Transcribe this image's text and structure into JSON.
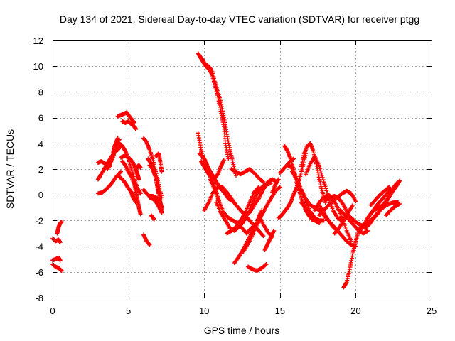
{
  "chart_data": {
    "type": "scatter",
    "title": "Day 134 of 2021, Sidereal Day-to-day VTEC variation (SDTVAR) for receiver ptgg",
    "xlabel": "GPS time / hours",
    "ylabel": "SDTVAR / TECUs",
    "xlim": [
      0,
      25
    ],
    "ylim": [
      -8,
      12
    ],
    "xticks": [
      0,
      5,
      10,
      15,
      20,
      25
    ],
    "yticks": [
      -8,
      -6,
      -4,
      -2,
      0,
      2,
      4,
      6,
      8,
      10,
      12
    ],
    "grid": true,
    "marker": "+",
    "color": "#ff0000",
    "tracks": [
      {
        "x": [
          0.0,
          0.2,
          0.4,
          0.5
        ],
        "y": [
          -3.4,
          -3.6,
          -3.5,
          -3.7
        ]
      },
      {
        "x": [
          0.0,
          0.2,
          0.4,
          0.5
        ],
        "y": [
          -5.1,
          -5.0,
          -4.9,
          -5.1
        ]
      },
      {
        "x": [
          0.0,
          0.2,
          0.4,
          0.6
        ],
        "y": [
          -5.4,
          -5.6,
          -5.7,
          -5.9
        ]
      },
      {
        "x": [
          0.3,
          0.4,
          0.5,
          0.6
        ],
        "y": [
          -3.0,
          -2.5,
          -2.2,
          -2.1
        ]
      },
      {
        "x": [
          3.0,
          3.2,
          3.5,
          3.8
        ],
        "y": [
          2.5,
          2.6,
          2.4,
          2.2
        ]
      },
      {
        "x": [
          3.0,
          3.2,
          3.5,
          3.7,
          3.9,
          4.1,
          4.3,
          4.5
        ],
        "y": [
          1.2,
          1.6,
          2.2,
          2.6,
          3.0,
          3.3,
          3.5,
          3.8
        ]
      },
      {
        "x": [
          3.0,
          3.3,
          3.6,
          3.9,
          4.2,
          4.5
        ],
        "y": [
          0.1,
          0.2,
          0.5,
          0.9,
          1.4,
          1.8
        ]
      },
      {
        "x": [
          3.6,
          3.8,
          4.0,
          4.1,
          4.2,
          4.3,
          4.4
        ],
        "y": [
          2.0,
          2.4,
          3.0,
          3.4,
          3.7,
          4.2,
          4.3
        ]
      },
      {
        "x": [
          4.0,
          4.1,
          4.2,
          4.3
        ],
        "y": [
          3.3,
          3.8,
          4.1,
          4.4
        ]
      },
      {
        "x": [
          4.3,
          4.5,
          4.7,
          4.9,
          5.0,
          5.2,
          5.4
        ],
        "y": [
          6.1,
          6.2,
          6.3,
          6.4,
          6.2,
          5.9,
          5.6
        ]
      },
      {
        "x": [
          4.6,
          4.8,
          5.0,
          5.2,
          5.4,
          5.5
        ],
        "y": [
          5.7,
          5.6,
          5.7,
          5.5,
          5.3,
          5.1
        ]
      },
      {
        "x": [
          4.4,
          4.6,
          4.8,
          5.0,
          5.2,
          5.4,
          5.6,
          5.8
        ],
        "y": [
          4.0,
          3.8,
          3.4,
          2.8,
          2.0,
          1.2,
          0.5,
          0.1
        ]
      },
      {
        "x": [
          4.5,
          4.7,
          4.9,
          5.1,
          5.3,
          5.5,
          5.6,
          5.7
        ],
        "y": [
          2.9,
          3.0,
          3.0,
          2.8,
          2.5,
          2.0,
          1.6,
          1.2
        ]
      },
      {
        "x": [
          4.6,
          4.8,
          5.0,
          5.2,
          5.4,
          5.5,
          5.6,
          5.7,
          5.8
        ],
        "y": [
          2.6,
          2.3,
          1.8,
          1.4,
          0.8,
          0.2,
          -0.4,
          -1.0,
          -1.5
        ]
      },
      {
        "x": [
          4.4,
          4.6,
          4.8,
          5.0,
          5.2,
          5.3,
          5.5
        ],
        "y": [
          1.4,
          1.2,
          0.9,
          0.5,
          0.2,
          -0.2,
          -0.6
        ]
      },
      {
        "x": [
          5.5,
          5.6,
          5.7,
          5.8
        ],
        "y": [
          2.0,
          2.2,
          2.3,
          2.1
        ]
      },
      {
        "x": [
          6.0,
          6.2,
          6.4,
          6.6,
          6.8,
          7.0,
          7.2
        ],
        "y": [
          4.4,
          4.1,
          3.5,
          2.8,
          1.8,
          0.8,
          -0.2
        ]
      },
      {
        "x": [
          6.3,
          6.5,
          6.7,
          6.9,
          7.0,
          7.1,
          7.2
        ],
        "y": [
          2.8,
          2.4,
          1.7,
          1.0,
          0.2,
          -0.5,
          -1.2
        ]
      },
      {
        "x": [
          6.4,
          6.6,
          6.8,
          6.9,
          7.0,
          7.1,
          7.2
        ],
        "y": [
          2.3,
          2.0,
          1.4,
          0.7,
          0.1,
          -0.6,
          -1.4
        ]
      },
      {
        "x": [
          6.0,
          6.2,
          6.4,
          6.6,
          6.8,
          7.0,
          7.2
        ],
        "y": [
          0.4,
          0.1,
          -0.1,
          -0.1,
          -0.2,
          -0.4,
          -0.9
        ]
      },
      {
        "x": [
          6.4,
          6.6,
          6.8,
          7.0,
          7.2
        ],
        "y": [
          -0.2,
          -0.3,
          -0.5,
          -0.9,
          -1.4
        ]
      },
      {
        "x": [
          6.8,
          7.0,
          7.1,
          7.2
        ],
        "y": [
          3.0,
          3.2,
          2.6,
          1.8
        ]
      },
      {
        "x": [
          6.0,
          6.2,
          6.4
        ],
        "y": [
          -3.1,
          -3.6,
          -3.9
        ]
      },
      {
        "x": [
          6.5,
          6.7
        ],
        "y": [
          -1.6,
          -1.9
        ]
      },
      {
        "x": [
          9.6,
          9.8,
          10.0,
          10.2,
          10.5,
          10.7,
          10.9,
          11.1,
          11.3,
          11.5,
          11.7,
          11.9,
          12.1
        ],
        "y": [
          11.0,
          10.6,
          10.2,
          10.1,
          9.7,
          8.8,
          8.0,
          7.2,
          6.0,
          4.7,
          3.5,
          2.5,
          1.5
        ]
      },
      {
        "x": [
          9.7,
          9.9,
          10.1,
          10.3,
          10.5,
          10.7,
          10.9,
          11.1,
          11.3,
          11.4,
          11.6
        ],
        "y": [
          10.8,
          10.5,
          10.0,
          9.8,
          9.4,
          8.6,
          7.6,
          6.5,
          5.3,
          4.0,
          2.8
        ]
      },
      {
        "x": [
          9.6,
          9.8,
          10.0,
          10.2,
          10.4,
          10.6,
          10.8,
          11.0,
          11.3,
          11.6,
          11.9
        ],
        "y": [
          4.8,
          3.5,
          2.5,
          2.2,
          1.8,
          1.4,
          1.0,
          0.6,
          0.2,
          -0.3,
          -0.5
        ]
      },
      {
        "x": [
          9.7,
          9.9,
          10.1,
          10.3,
          10.5,
          10.7,
          10.9,
          11.1,
          11.3
        ],
        "y": [
          3.2,
          3.0,
          2.6,
          2.0,
          1.6,
          1.3,
          1.6,
          2.2,
          2.7
        ]
      },
      {
        "x": [
          9.8,
          10.0,
          10.2,
          10.4,
          10.6,
          10.8,
          11.0
        ],
        "y": [
          2.6,
          2.2,
          1.8,
          1.4,
          0.8,
          0.2,
          -0.6
        ]
      },
      {
        "x": [
          10.0,
          10.3,
          10.6,
          10.9,
          11.2,
          11.5,
          11.8,
          12.1,
          12.4,
          12.7,
          13.0,
          13.3,
          13.6,
          13.9
        ],
        "y": [
          -1.2,
          -0.6,
          0.2,
          0.6,
          0.6,
          0.2,
          -0.3,
          -0.8,
          -1.2,
          -1.6,
          -2.0,
          -2.4,
          -2.8,
          -3.2
        ]
      },
      {
        "x": [
          10.4,
          10.7,
          11.0,
          11.3,
          11.6,
          11.9,
          12.2,
          12.5,
          12.8,
          13.1,
          13.4,
          13.7
        ],
        "y": [
          1.2,
          0.4,
          -0.6,
          -1.4,
          -1.8,
          -2.0,
          -2.2,
          -2.6,
          -3.0,
          -2.6,
          -2.3,
          -2.0
        ]
      },
      {
        "x": [
          10.8,
          11.1,
          11.4,
          11.7,
          12.0,
          12.3,
          12.6,
          12.9,
          13.2,
          13.5,
          13.8,
          14.1,
          14.4
        ],
        "y": [
          -0.6,
          -1.4,
          -2.0,
          -2.6,
          -2.8,
          -2.5,
          -2.1,
          -1.4,
          -0.6,
          0.1,
          0.6,
          0.8,
          0.9
        ]
      },
      {
        "x": [
          11.5,
          11.8,
          12.1,
          12.4,
          12.7,
          13.0,
          13.3,
          13.6
        ],
        "y": [
          -3.0,
          -2.8,
          -2.5,
          -2.0,
          -1.4,
          -0.6,
          0.2,
          0.6
        ]
      },
      {
        "x": [
          11.8,
          12.1,
          12.4,
          12.7,
          13.0,
          13.3,
          13.6,
          13.9
        ],
        "y": [
          2.0,
          1.8,
          1.6,
          1.8,
          2.0,
          1.7,
          1.3,
          1.0
        ]
      },
      {
        "x": [
          12.0,
          12.3,
          12.6,
          12.9,
          13.2,
          13.5,
          13.8
        ],
        "y": [
          -5.3,
          -4.8,
          -4.2,
          -3.5,
          -2.8,
          -2.0,
          -1.2
        ]
      },
      {
        "x": [
          12.6,
          12.9,
          13.2,
          13.5,
          13.8,
          14.1,
          14.4,
          14.7,
          15.0
        ],
        "y": [
          -4.4,
          -3.8,
          -3.1,
          -2.3,
          -1.6,
          -0.9,
          -0.3,
          0.3,
          0.6
        ]
      },
      {
        "x": [
          12.9,
          13.2,
          13.5,
          13.8,
          14.1
        ],
        "y": [
          -5.6,
          -5.8,
          -5.9,
          -5.7,
          -5.4
        ]
      },
      {
        "x": [
          13.0,
          13.3,
          13.6,
          13.9,
          14.2,
          14.5,
          14.8
        ],
        "y": [
          -1.4,
          -0.8,
          -0.3,
          0.4,
          1.0,
          1.2,
          1.0
        ]
      },
      {
        "x": [
          13.6,
          13.9,
          14.2,
          14.5
        ],
        "y": [
          -1.6,
          -2.3,
          -2.9,
          -3.3
        ]
      },
      {
        "x": [
          14.0,
          14.2,
          14.4,
          14.6
        ],
        "y": [
          -4.3,
          -3.8,
          -3.3,
          -2.8
        ]
      },
      {
        "x": [
          14.5,
          14.7,
          14.9
        ],
        "y": [
          0.2,
          0.8,
          1.2
        ]
      },
      {
        "x": [
          14.9,
          15.1,
          15.3,
          15.5,
          15.7,
          15.9,
          16.1,
          16.3,
          16.5,
          16.7
        ],
        "y": [
          -1.8,
          -1.6,
          -1.3,
          -1.0,
          -0.6,
          0.0,
          0.6,
          1.3,
          2.2,
          3.2
        ]
      },
      {
        "x": [
          15.0,
          15.3,
          15.6,
          15.9
        ],
        "y": [
          1.7,
          2.1,
          2.5,
          2.8
        ]
      },
      {
        "x": [
          15.3,
          15.5,
          15.7,
          15.9,
          16.1,
          16.3,
          16.5,
          16.7,
          16.9,
          17.1,
          17.3
        ],
        "y": [
          3.8,
          3.4,
          2.8,
          2.0,
          1.0,
          0.2,
          -0.6,
          -1.2,
          -1.6,
          -1.9,
          -2.0
        ]
      },
      {
        "x": [
          15.5,
          15.8,
          16.1,
          16.4,
          16.7,
          17.0,
          17.3,
          17.6,
          17.9
        ],
        "y": [
          2.3,
          2.1,
          1.3,
          0.4,
          -0.5,
          -1.3,
          -1.8,
          -2.0,
          -2.0
        ]
      },
      {
        "x": [
          15.8,
          16.1,
          16.4,
          16.7,
          17.0,
          17.3,
          17.6,
          17.9,
          18.2,
          18.5,
          18.8
        ],
        "y": [
          1.8,
          1.2,
          0.4,
          -0.3,
          -0.8,
          -1.0,
          -1.2,
          -1.6,
          -2.0,
          -2.4,
          -2.8
        ]
      },
      {
        "x": [
          16.4,
          16.7,
          17.0,
          17.3,
          17.6
        ],
        "y": [
          -0.6,
          -1.0,
          -1.6,
          -2.0,
          -2.2
        ]
      },
      {
        "x": [
          16.4,
          16.6,
          16.8,
          17.0,
          17.2,
          17.4,
          17.6,
          17.8,
          18.0
        ],
        "y": [
          2.2,
          3.2,
          3.8,
          4.0,
          3.4,
          2.4,
          1.2,
          0.2,
          -0.6
        ]
      },
      {
        "x": [
          16.7,
          17.0,
          17.3,
          17.6,
          17.9,
          18.2,
          18.5,
          18.8,
          19.1
        ],
        "y": [
          1.6,
          2.4,
          3.0,
          2.2,
          1.0,
          -0.2,
          -1.2,
          -1.8,
          -2.0
        ]
      },
      {
        "x": [
          17.6,
          17.9,
          18.2,
          18.5,
          18.8,
          19.1,
          19.4,
          19.7,
          20.0
        ],
        "y": [
          -0.8,
          -1.4,
          -2.0,
          -2.5,
          -2.8,
          -3.2,
          -3.6,
          -3.9,
          -4.0
        ]
      },
      {
        "x": [
          17.3,
          17.6,
          17.9,
          18.2,
          18.5,
          18.8,
          19.1,
          19.4,
          19.7
        ],
        "y": [
          -1.2,
          -0.6,
          -0.2,
          0.0,
          -0.3,
          -1.0,
          -1.8,
          -2.8,
          -3.6
        ]
      },
      {
        "x": [
          17.6,
          17.9,
          18.2,
          18.5,
          18.8,
          19.1,
          19.4,
          19.7,
          20.0
        ],
        "y": [
          -1.6,
          -1.2,
          -0.8,
          -0.5,
          -0.2,
          0.1,
          0.3,
          0.1,
          -0.5
        ]
      },
      {
        "x": [
          18.0,
          18.3,
          18.6,
          18.9,
          19.2,
          19.5
        ],
        "y": [
          -0.4,
          -0.2,
          -0.1,
          -0.3,
          -0.8,
          -1.5
        ]
      },
      {
        "x": [
          18.6,
          18.9,
          19.2,
          19.5,
          19.8
        ],
        "y": [
          -3.0,
          -2.6,
          -2.0,
          -1.4,
          -0.8
        ]
      },
      {
        "x": [
          19.2,
          19.4,
          19.6,
          19.8,
          20.0,
          20.2,
          20.4
        ],
        "y": [
          -7.2,
          -6.8,
          -5.8,
          -4.6,
          -3.6,
          -2.8,
          -2.4
        ]
      },
      {
        "x": [
          19.0,
          19.3,
          19.6,
          19.9,
          20.2,
          20.5,
          20.8
        ],
        "y": [
          -1.2,
          -1.6,
          -2.0,
          -2.4,
          -2.8,
          -3.0,
          -2.8
        ]
      },
      {
        "x": [
          19.5,
          19.8,
          20.1,
          20.4,
          20.7,
          21.0,
          21.3,
          21.6,
          21.9,
          22.2,
          22.5,
          22.8
        ],
        "y": [
          -1.6,
          -1.9,
          -2.2,
          -2.4,
          -2.2,
          -2.0,
          -1.6,
          -1.2,
          -0.9,
          -0.7,
          -0.6,
          -0.6
        ]
      },
      {
        "x": [
          20.3,
          20.6,
          20.9,
          21.2,
          21.5,
          21.8,
          22.1,
          22.4,
          22.7
        ],
        "y": [
          -2.8,
          -2.2,
          -1.6,
          -1.2,
          -1.0,
          -0.8,
          -0.3,
          0.4,
          0.9
        ]
      },
      {
        "x": [
          20.6,
          20.9,
          21.2,
          21.5,
          21.8,
          22.1,
          22.4,
          22.7,
          22.9
        ],
        "y": [
          -2.6,
          -2.3,
          -1.8,
          -1.4,
          -0.9,
          -0.4,
          0.2,
          0.7,
          1.1
        ]
      },
      {
        "x": [
          20.8,
          21.1,
          21.4,
          21.7,
          22.0,
          22.3
        ],
        "y": [
          -1.8,
          -1.3,
          -0.8,
          -0.4,
          0.0,
          0.4
        ]
      },
      {
        "x": [
          21.0,
          21.3,
          21.6,
          21.9,
          22.2
        ],
        "y": [
          -0.8,
          -0.4,
          0.0,
          0.3,
          0.6
        ]
      },
      {
        "x": [
          22.0,
          22.3,
          22.6,
          22.9
        ],
        "y": [
          -1.6,
          -1.2,
          -0.9,
          -0.7
        ]
      }
    ]
  }
}
